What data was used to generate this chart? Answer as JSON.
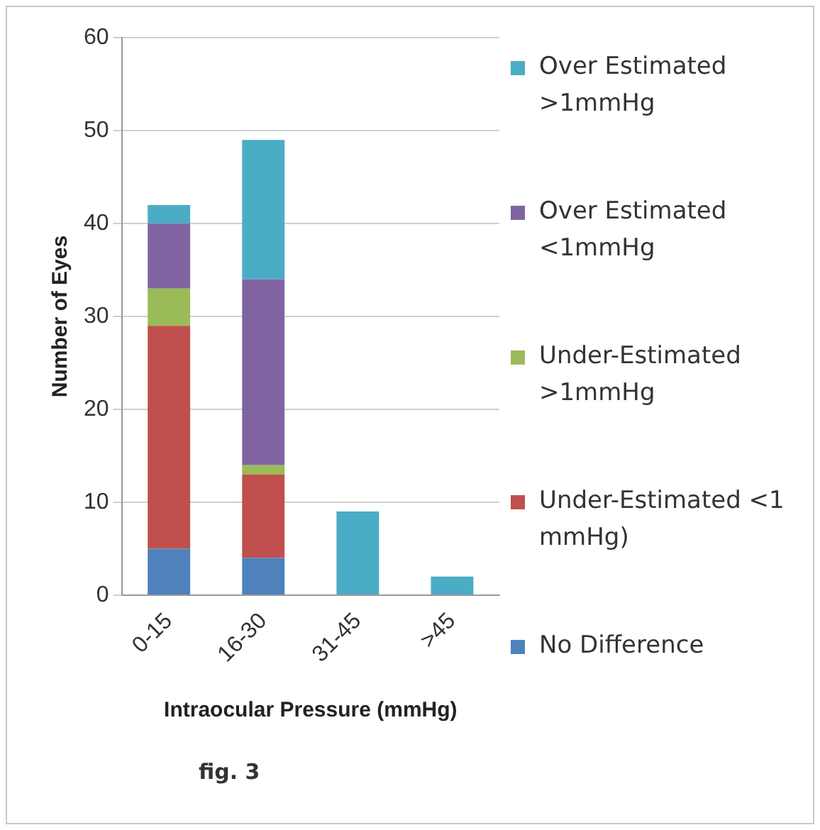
{
  "chart_data": {
    "type": "bar",
    "stacked": true,
    "categories": [
      "0-15",
      "16-30",
      "31-45",
      ">45"
    ],
    "series": [
      {
        "name": "No Difference",
        "color": "#4f81bd",
        "values": [
          5,
          4,
          0,
          0
        ]
      },
      {
        "name": "Under-Estimated <1 mmHg)",
        "color": "#c0504d",
        "values": [
          24,
          9,
          0,
          0
        ]
      },
      {
        "name": "Under-Estimated >1mmHg",
        "color": "#9bbb59",
        "values": [
          4,
          1,
          0,
          0
        ]
      },
      {
        "name": "Over Estimated <1mmHg",
        "color": "#8064a2",
        "values": [
          7,
          20,
          0,
          0
        ]
      },
      {
        "name": "Over Estimated >1mmHg",
        "color": "#4bacc6",
        "values": [
          2,
          15,
          9,
          2
        ]
      }
    ],
    "ylim": [
      0,
      60
    ],
    "yticks": [
      0,
      10,
      20,
      30,
      40,
      50,
      60
    ],
    "grid": "y",
    "legend": "right",
    "xlabel": "Intraocular Pressure (mmHg)",
    "ylabel": "Number of Eyes",
    "annotations": [
      "fig. 3"
    ]
  }
}
